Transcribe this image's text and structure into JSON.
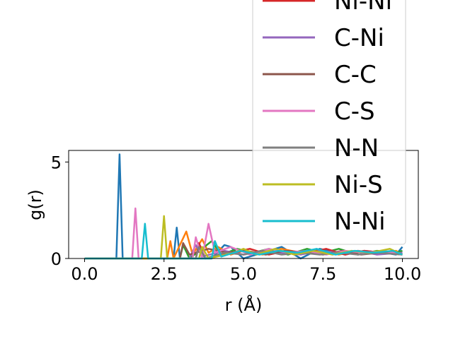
{
  "chart_data": {
    "type": "line",
    "title": "",
    "xlabel": "r (Å)",
    "ylabel": "g(r)",
    "xlim": [
      -0.5,
      10.5
    ],
    "ylim": [
      0,
      5.6
    ],
    "xticks": [
      0.0,
      2.5,
      5.0,
      7.5,
      10.0
    ],
    "xtick_labels": [
      "0.0",
      "2.5",
      "5.0",
      "7.5",
      "10.0"
    ],
    "yticks": [
      0,
      5
    ],
    "ytick_labels": [
      "0",
      "5"
    ],
    "grid": false,
    "legend_placement": "right, extending above the axes",
    "series": [
      {
        "name": "",
        "color": "#1f77b4",
        "points": [
          [
            0,
            0
          ],
          [
            1.0,
            0
          ],
          [
            1.1,
            5.4
          ],
          [
            1.2,
            0
          ],
          [
            2.8,
            0
          ],
          [
            2.9,
            1.6
          ],
          [
            3.0,
            0
          ],
          [
            4.0,
            0
          ],
          [
            4.4,
            0.7
          ],
          [
            4.6,
            0.6
          ],
          [
            5.0,
            0
          ],
          [
            5.6,
            0.3
          ],
          [
            6.2,
            0.6
          ],
          [
            6.8,
            0
          ],
          [
            7.4,
            0.5
          ],
          [
            8.2,
            0.2
          ],
          [
            8.8,
            0.4
          ],
          [
            9.4,
            0.3
          ],
          [
            9.8,
            0.2
          ],
          [
            10.0,
            0.6
          ]
        ]
      },
      {
        "name": "",
        "color": "#ff7f0e",
        "points": [
          [
            0,
            0
          ],
          [
            2.6,
            0
          ],
          [
            2.7,
            0.9
          ],
          [
            2.8,
            0
          ],
          [
            3.2,
            1.4
          ],
          [
            3.4,
            0.2
          ],
          [
            3.7,
            1.0
          ],
          [
            3.9,
            0.3
          ],
          [
            4.2,
            0.6
          ],
          [
            4.6,
            0.2
          ],
          [
            5.0,
            0.4
          ],
          [
            5.6,
            0.2
          ],
          [
            6.2,
            0.5
          ],
          [
            6.8,
            0.3
          ],
          [
            7.4,
            0.4
          ],
          [
            8.0,
            0.2
          ],
          [
            8.6,
            0.4
          ],
          [
            9.2,
            0.3
          ],
          [
            9.8,
            0.4
          ],
          [
            10.0,
            0.2
          ]
        ]
      },
      {
        "name": "",
        "color": "#2ca02c",
        "points": [
          [
            0,
            0
          ],
          [
            3.0,
            0
          ],
          [
            3.1,
            0.7
          ],
          [
            3.3,
            0
          ],
          [
            4.0,
            0.9
          ],
          [
            4.3,
            0.2
          ],
          [
            4.8,
            0.5
          ],
          [
            5.3,
            0.3
          ],
          [
            5.8,
            0.5
          ],
          [
            6.4,
            0.2
          ],
          [
            7.0,
            0.5
          ],
          [
            7.5,
            0.3
          ],
          [
            8.0,
            0.5
          ],
          [
            8.6,
            0.2
          ],
          [
            9.2,
            0.4
          ],
          [
            9.8,
            0.3
          ],
          [
            10.0,
            0.4
          ]
        ]
      },
      {
        "name": "Ni-Ni",
        "color": "#d62728",
        "points": [
          [
            0,
            0
          ],
          [
            3.5,
            0
          ],
          [
            3.6,
            0.8
          ],
          [
            3.8,
            0
          ],
          [
            4.6,
            0.3
          ],
          [
            5.2,
            0.5
          ],
          [
            5.8,
            0.2
          ],
          [
            6.4,
            0.4
          ],
          [
            7.0,
            0.3
          ],
          [
            7.6,
            0.5
          ],
          [
            8.2,
            0.2
          ],
          [
            8.8,
            0.4
          ],
          [
            9.4,
            0.3
          ],
          [
            10.0,
            0.2
          ]
        ]
      },
      {
        "name": "C-Ni",
        "color": "#9467bd",
        "points": [
          [
            0,
            0
          ],
          [
            3.3,
            0
          ],
          [
            3.5,
            0.7
          ],
          [
            3.7,
            0.1
          ],
          [
            4.4,
            0.4
          ],
          [
            5.0,
            0.2
          ],
          [
            5.6,
            0.4
          ],
          [
            6.2,
            0.3
          ],
          [
            6.8,
            0.2
          ],
          [
            7.4,
            0.4
          ],
          [
            8.0,
            0.3
          ],
          [
            8.6,
            0.4
          ],
          [
            9.2,
            0.2
          ],
          [
            10.0,
            0.3
          ]
        ]
      },
      {
        "name": "C-C",
        "color": "#8c564b",
        "points": [
          [
            0,
            0
          ],
          [
            3.0,
            0
          ],
          [
            3.1,
            0.8
          ],
          [
            3.3,
            0.2
          ],
          [
            3.9,
            0.5
          ],
          [
            4.5,
            0.3
          ],
          [
            5.1,
            0.4
          ],
          [
            5.7,
            0.2
          ],
          [
            6.3,
            0.4
          ],
          [
            6.9,
            0.3
          ],
          [
            7.5,
            0.2
          ],
          [
            8.1,
            0.4
          ],
          [
            8.7,
            0.2
          ],
          [
            9.3,
            0.3
          ],
          [
            10.0,
            0.2
          ]
        ]
      },
      {
        "name": "C-S",
        "color": "#e377c2",
        "points": [
          [
            0,
            0
          ],
          [
            1.5,
            0
          ],
          [
            1.6,
            2.6
          ],
          [
            1.7,
            0
          ],
          [
            3.4,
            0
          ],
          [
            3.5,
            1.1
          ],
          [
            3.7,
            0
          ],
          [
            3.9,
            1.8
          ],
          [
            4.1,
            0.3
          ],
          [
            4.6,
            0.6
          ],
          [
            5.2,
            0.2
          ],
          [
            5.8,
            0.5
          ],
          [
            6.4,
            0.3
          ],
          [
            7.0,
            0.4
          ],
          [
            7.6,
            0.2
          ],
          [
            8.2,
            0.4
          ],
          [
            8.8,
            0.3
          ],
          [
            9.4,
            0.4
          ],
          [
            10.0,
            0.2
          ]
        ]
      },
      {
        "name": "N-N",
        "color": "#7f7f7f",
        "points": [
          [
            0,
            0
          ],
          [
            3.5,
            0
          ],
          [
            3.6,
            0.6
          ],
          [
            3.8,
            0
          ],
          [
            4.4,
            0.3
          ],
          [
            5.0,
            0.2
          ],
          [
            5.6,
            0.4
          ],
          [
            6.2,
            0.2
          ],
          [
            6.8,
            0.3
          ],
          [
            7.4,
            0.2
          ],
          [
            8.0,
            0.3
          ],
          [
            8.6,
            0.2
          ],
          [
            9.2,
            0.3
          ],
          [
            10.0,
            0.2
          ]
        ]
      },
      {
        "name": "Ni-S",
        "color": "#bcbd22",
        "points": [
          [
            0,
            0
          ],
          [
            2.4,
            0
          ],
          [
            2.5,
            2.2
          ],
          [
            2.6,
            0
          ],
          [
            3.6,
            0
          ],
          [
            3.7,
            0.6
          ],
          [
            3.9,
            0
          ],
          [
            4.7,
            0.3
          ],
          [
            5.0,
            0.5
          ],
          [
            5.4,
            0.2
          ],
          [
            6.0,
            0.5
          ],
          [
            6.6,
            0.2
          ],
          [
            7.2,
            0.4
          ],
          [
            7.8,
            0.2
          ],
          [
            8.4,
            0.4
          ],
          [
            9.0,
            0.3
          ],
          [
            9.6,
            0.5
          ],
          [
            10.0,
            0.2
          ]
        ]
      },
      {
        "name": "N-Ni",
        "color": "#17becf",
        "points": [
          [
            0,
            0
          ],
          [
            1.8,
            0
          ],
          [
            1.9,
            1.8
          ],
          [
            2.0,
            0
          ],
          [
            4.0,
            0
          ],
          [
            4.1,
            0.9
          ],
          [
            4.3,
            0.1
          ],
          [
            4.9,
            0.4
          ],
          [
            5.5,
            0.2
          ],
          [
            6.1,
            0.4
          ],
          [
            6.7,
            0.3
          ],
          [
            7.3,
            0.5
          ],
          [
            7.9,
            0.2
          ],
          [
            8.5,
            0.4
          ],
          [
            9.1,
            0.3
          ],
          [
            9.7,
            0.4
          ],
          [
            10.0,
            0.2
          ]
        ]
      }
    ]
  }
}
